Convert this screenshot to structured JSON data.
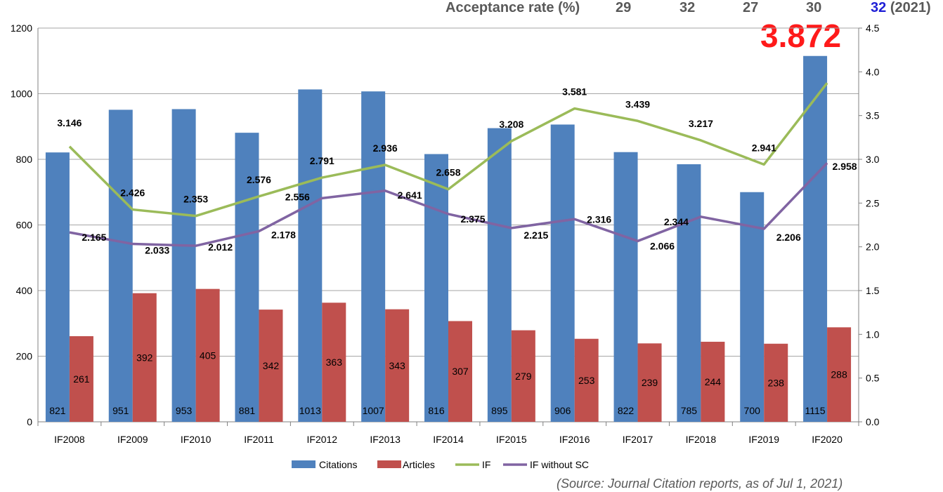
{
  "header": {
    "acceptance_label": "Acceptance rate (%)",
    "acceptance_values": [
      "29",
      "32",
      "27",
      "30"
    ],
    "acceptance_latest": "32",
    "acceptance_latest_year": "(2021)"
  },
  "highlight_value": "3.872",
  "source": "(Source: Journal Citation reports, as of  Jul 1, 2021)",
  "colors": {
    "citations": "#4f81bd",
    "articles": "#c0504d",
    "if": "#9bbb59",
    "if_without_sc": "#8064a2",
    "highlight": "#ff1a1a",
    "acceptance_latest": "#1f1fd6"
  },
  "chart_data": {
    "type": "bar",
    "categories": [
      "IF2008",
      "IF2009",
      "IF2010",
      "IF2011",
      "IF2012",
      "IF2013",
      "IF2014",
      "IF2015",
      "IF2016",
      "IF2017",
      "IF2018",
      "IF2019",
      "IF2020"
    ],
    "series": [
      {
        "name": "Citations",
        "type": "bar",
        "axis": "left",
        "values": [
          821,
          951,
          953,
          881,
          1013,
          1007,
          816,
          895,
          906,
          822,
          785,
          700,
          1115
        ]
      },
      {
        "name": "Articles",
        "type": "bar",
        "axis": "left",
        "values": [
          261,
          392,
          405,
          342,
          363,
          343,
          307,
          279,
          253,
          239,
          244,
          238,
          288
        ]
      },
      {
        "name": "IF",
        "type": "line",
        "axis": "right",
        "values": [
          3.146,
          2.426,
          2.353,
          2.576,
          2.791,
          2.936,
          2.658,
          3.208,
          3.581,
          3.439,
          3.217,
          2.941,
          3.872
        ]
      },
      {
        "name": "IF without SC",
        "type": "line",
        "axis": "right",
        "values": [
          2.165,
          2.033,
          2.012,
          2.178,
          2.556,
          2.641,
          2.375,
          2.215,
          2.316,
          2.066,
          2.344,
          2.206,
          2.958
        ]
      }
    ],
    "line_labels": {
      "IF": [
        "3.146",
        "2.426",
        "2.353",
        "2.576",
        "2.791",
        "2.936",
        "2.658",
        "3.208",
        "3.581",
        "3.439",
        "3.217",
        "2.941",
        ""
      ],
      "IF without SC": [
        "2.165",
        "2.033",
        "2.012",
        "2.178",
        "2.556",
        "2.641",
        "2.375",
        "2.215",
        "2.316",
        "2.066",
        "2.344",
        "2.206",
        "2.958"
      ]
    },
    "y_left": {
      "min": 0,
      "max": 1200,
      "ticks": [
        "0",
        "200",
        "400",
        "600",
        "800",
        "1000",
        "1200"
      ]
    },
    "y_right": {
      "min": 0,
      "max": 4.5,
      "ticks": [
        "0.0",
        "0.5",
        "1.0",
        "1.5",
        "2.0",
        "2.5",
        "3.0",
        "3.5",
        "4.0",
        "4.5"
      ]
    },
    "grid": true,
    "legend_position": "bottom"
  }
}
